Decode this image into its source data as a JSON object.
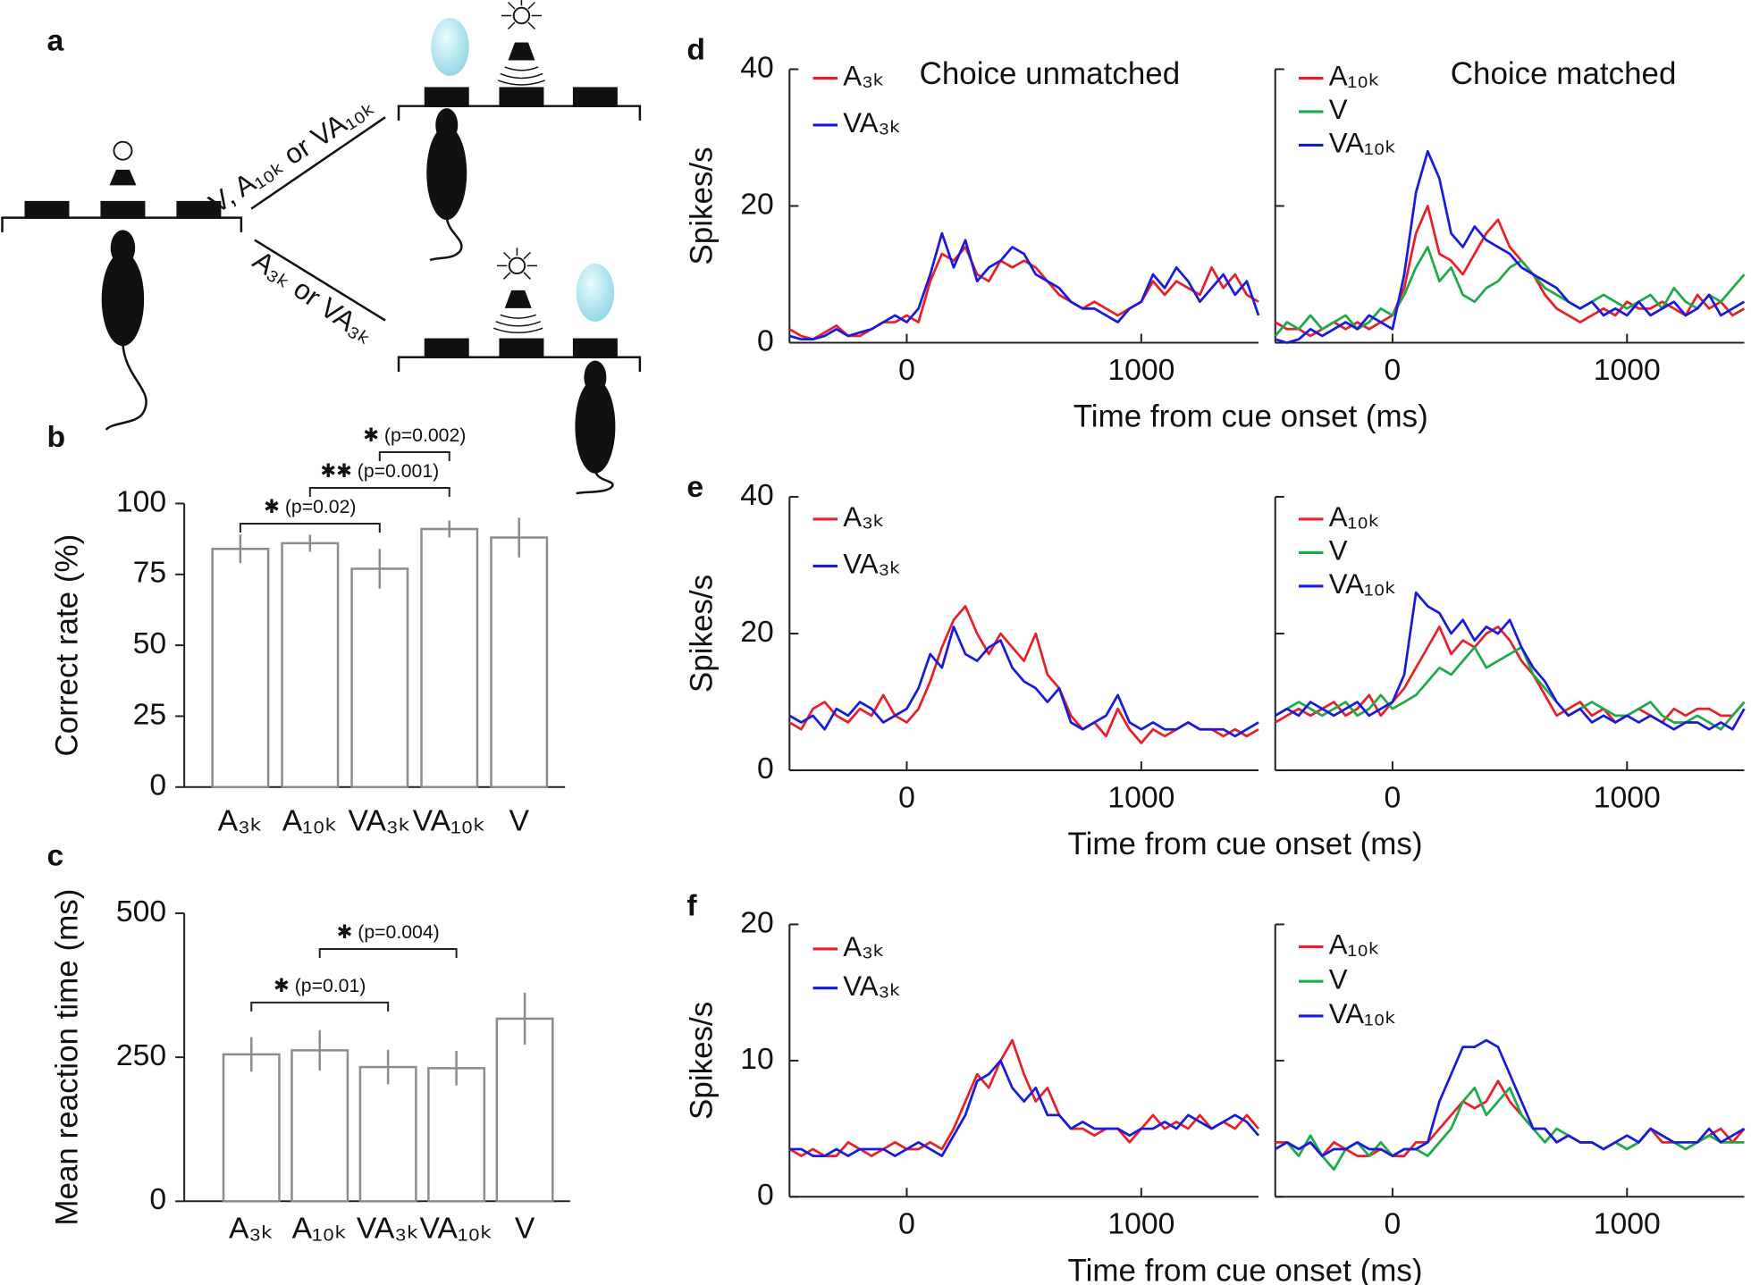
{
  "panel_labels": [
    "a",
    "b",
    "c",
    "d",
    "e",
    "f"
  ],
  "diagram": {
    "texts": [
      "V, A₁₀ₖ or VA₁₀ₖ",
      "A₃ₖ or VA₃ₖ"
    ]
  },
  "chart_data": [
    {
      "type": "bar",
      "ylabel": "Correct rate (%)",
      "categories": [
        "A₃ₖ",
        "A₁₀ₖ",
        "VA₃ₖ",
        "VA₁₀ₖ",
        "V"
      ],
      "values": [
        84,
        86,
        77,
        91,
        88
      ],
      "errors": [
        5,
        3,
        7,
        3,
        7
      ],
      "color": "#8c8c8c",
      "ylim": [
        0,
        100
      ],
      "yticks": [
        0,
        25,
        50,
        75,
        100
      ],
      "annotations": [
        {
          "text": "✱ (p=0.02)",
          "from": 0,
          "to": 2
        },
        {
          "text": "✱✱ (p=0.001)",
          "from": 1,
          "to": 3
        },
        {
          "text": "✱ (p=0.002)",
          "from": 2,
          "to": 3
        }
      ]
    },
    {
      "type": "bar",
      "ylabel": "Mean reaction time (ms)",
      "categories": [
        "A₃ₖ",
        "A₁₀ₖ",
        "VA₃ₖ",
        "VA₁₀ₖ",
        "V"
      ],
      "values": [
        255,
        262,
        233,
        231,
        317
      ],
      "errors": [
        30,
        35,
        30,
        30,
        45
      ],
      "color": "#8c8c8c",
      "ylim": [
        0,
        500
      ],
      "yticks": [
        0,
        250,
        500
      ],
      "annotations": [
        {
          "text": "✱ (p=0.01)",
          "from": 0,
          "to": 2
        },
        {
          "text": "✱ (p=0.004)",
          "from": 1,
          "to": 3
        }
      ]
    },
    {
      "type": "line",
      "title": "Choice unmatched",
      "ylabel": "Spikes/s",
      "xlabel": "Time from cue onset (ms)",
      "xlim": [
        -500,
        1500
      ],
      "xticks": [
        0,
        1000
      ],
      "ylim": [
        0,
        40
      ],
      "yticks": [
        0,
        20,
        40
      ],
      "x": [
        -500,
        -450,
        -400,
        -350,
        -300,
        -250,
        -200,
        -150,
        -100,
        -50,
        0,
        50,
        100,
        150,
        200,
        250,
        300,
        350,
        400,
        450,
        500,
        550,
        600,
        650,
        700,
        750,
        800,
        850,
        900,
        950,
        1000,
        1050,
        1100,
        1150,
        1200,
        1250,
        1300,
        1350,
        1400,
        1450,
        1500
      ],
      "series": [
        {
          "name": "A₃ₖ",
          "color": "#e8202a",
          "values": [
            2,
            1,
            0.5,
            1.5,
            2.5,
            1,
            1,
            2,
            3,
            3,
            4,
            3,
            9,
            13,
            12,
            14,
            10,
            9,
            12,
            11,
            12,
            11,
            9,
            7,
            6,
            5,
            6,
            5,
            4,
            5,
            6,
            9,
            7,
            9,
            8,
            7,
            11,
            8,
            10,
            7,
            6
          ]
        },
        {
          "name": "VA₃ₖ",
          "color": "#1a1adb",
          "values": [
            1,
            0.5,
            0.5,
            1,
            2,
            1,
            1.5,
            2,
            3,
            4,
            3,
            5,
            10,
            16,
            11,
            15,
            9,
            11,
            12,
            14,
            13,
            10,
            9,
            8,
            6,
            5,
            5,
            4,
            3,
            5,
            6,
            10,
            8,
            11,
            9,
            6,
            8,
            10,
            7,
            9,
            4
          ]
        }
      ]
    },
    {
      "type": "line",
      "title": "Choice matched",
      "xlim": [
        -500,
        1500
      ],
      "xticks": [
        0,
        1000
      ],
      "ylim": [
        0,
        40
      ],
      "yticks": [
        0,
        20,
        40
      ],
      "x": [
        -500,
        -450,
        -400,
        -350,
        -300,
        -250,
        -200,
        -150,
        -100,
        -50,
        0,
        50,
        100,
        150,
        200,
        250,
        300,
        350,
        400,
        450,
        500,
        550,
        600,
        650,
        700,
        750,
        800,
        850,
        900,
        950,
        1000,
        1050,
        1100,
        1150,
        1200,
        1250,
        1300,
        1350,
        1400,
        1450,
        1500
      ],
      "series": [
        {
          "name": "A₁₀ₖ",
          "color": "#e8202a",
          "values": [
            3,
            2,
            2,
            1,
            2,
            3,
            2,
            3,
            2,
            3,
            4,
            8,
            16,
            20,
            13,
            12,
            10,
            13,
            16,
            18,
            14,
            12,
            10,
            7,
            5,
            4,
            3,
            4,
            5,
            4,
            6,
            5,
            5,
            6,
            5,
            4,
            7,
            5,
            6,
            4,
            5
          ]
        },
        {
          "name": "V",
          "color": "#1faa4b",
          "values": [
            1,
            3,
            2,
            4,
            2,
            3,
            4,
            2,
            3,
            5,
            4,
            7,
            11,
            14,
            9,
            11,
            7,
            6,
            8,
            9,
            11,
            12,
            10,
            8,
            7,
            6,
            5,
            6,
            7,
            6,
            5,
            6,
            7,
            5,
            8,
            6,
            5,
            7,
            6,
            8,
            10
          ]
        },
        {
          "name": "VA₁₀ₖ",
          "color": "#1a1adb",
          "values": [
            0.5,
            0,
            0.5,
            2,
            1,
            2,
            3,
            2,
            4,
            3,
            2,
            10,
            22,
            28,
            24,
            16,
            14,
            17,
            15,
            14,
            13,
            11,
            10,
            9,
            8,
            6,
            5,
            6,
            4,
            5,
            4,
            6,
            4,
            5,
            6,
            4,
            5,
            7,
            4,
            5,
            6
          ]
        }
      ]
    },
    {
      "type": "line",
      "ylabel": "Spikes/s",
      "xlabel": "Time from cue onset (ms)",
      "xlim": [
        -500,
        1500
      ],
      "xticks": [
        0,
        1000
      ],
      "ylim": [
        0,
        40
      ],
      "yticks": [
        0,
        20,
        40
      ],
      "x": [
        -500,
        -450,
        -400,
        -350,
        -300,
        -250,
        -200,
        -150,
        -100,
        -50,
        0,
        50,
        100,
        150,
        200,
        250,
        300,
        350,
        400,
        450,
        500,
        550,
        600,
        650,
        700,
        750,
        800,
        850,
        900,
        950,
        1000,
        1050,
        1100,
        1150,
        1200,
        1250,
        1300,
        1350,
        1400,
        1450,
        1500
      ],
      "series": [
        {
          "name": "A₃ₖ",
          "color": "#e8202a",
          "values": [
            7,
            6,
            9,
            10,
            8,
            7,
            9,
            8,
            11,
            8,
            7,
            9,
            13,
            18,
            22,
            24,
            20,
            17,
            20,
            18,
            16,
            20,
            14,
            12,
            8,
            6,
            7,
            5,
            9,
            6,
            4,
            6,
            5,
            6,
            7,
            6,
            6,
            5,
            6,
            5,
            6
          ]
        },
        {
          "name": "VA₃ₖ",
          "color": "#1a1adb",
          "values": [
            8,
            7,
            8,
            6,
            9,
            8,
            10,
            9,
            7,
            8,
            9,
            12,
            17,
            15,
            21,
            17,
            16,
            18,
            19,
            15,
            13,
            12,
            10,
            12,
            7,
            6,
            7,
            8,
            11,
            7,
            6,
            7,
            6,
            6,
            7,
            6,
            6,
            6,
            5,
            6,
            7
          ]
        }
      ]
    },
    {
      "type": "line",
      "xlim": [
        -500,
        1500
      ],
      "xticks": [
        0,
        1000
      ],
      "ylim": [
        0,
        40
      ],
      "yticks": [
        0,
        20,
        40
      ],
      "x": [
        -500,
        -450,
        -400,
        -350,
        -300,
        -250,
        -200,
        -150,
        -100,
        -50,
        0,
        50,
        100,
        150,
        200,
        250,
        300,
        350,
        400,
        450,
        500,
        550,
        600,
        650,
        700,
        750,
        800,
        850,
        900,
        950,
        1000,
        1050,
        1100,
        1150,
        1200,
        1250,
        1300,
        1350,
        1400,
        1450,
        1500
      ],
      "series": [
        {
          "name": "A₁₀ₖ",
          "color": "#e8202a",
          "values": [
            7,
            8,
            9,
            8,
            9,
            10,
            8,
            9,
            11,
            8,
            10,
            12,
            15,
            18,
            21,
            17,
            19,
            18,
            20,
            21,
            19,
            16,
            14,
            11,
            8,
            9,
            10,
            8,
            9,
            7,
            8,
            9,
            8,
            7,
            9,
            8,
            9,
            9,
            8,
            8,
            10
          ]
        },
        {
          "name": "V",
          "color": "#1faa4b",
          "values": [
            8,
            9,
            10,
            9,
            8,
            9,
            10,
            8,
            9,
            11,
            9,
            10,
            11,
            13,
            15,
            14,
            16,
            18,
            15,
            16,
            17,
            18,
            14,
            12,
            10,
            8,
            9,
            10,
            9,
            8,
            8,
            9,
            10,
            8,
            7,
            7,
            8,
            7,
            6,
            8,
            10
          ]
        },
        {
          "name": "VA₁₀ₖ",
          "color": "#1a1adb",
          "values": [
            8,
            9,
            8,
            10,
            9,
            8,
            9,
            10,
            8,
            9,
            10,
            14,
            26,
            24,
            23,
            20,
            22,
            19,
            21,
            20,
            22,
            18,
            15,
            13,
            10,
            8,
            9,
            7,
            8,
            7,
            8,
            7,
            8,
            7,
            6,
            7,
            7,
            6,
            7,
            6,
            9
          ]
        }
      ]
    },
    {
      "type": "line",
      "ylabel": "Spikes/s",
      "xlabel": "Time from cue onset (ms)",
      "xlim": [
        -500,
        1500
      ],
      "xticks": [
        0,
        1000
      ],
      "ylim": [
        0,
        20
      ],
      "yticks": [
        0,
        10,
        20
      ],
      "x": [
        -500,
        -450,
        -400,
        -350,
        -300,
        -250,
        -200,
        -150,
        -100,
        -50,
        0,
        50,
        100,
        150,
        200,
        250,
        300,
        350,
        400,
        450,
        500,
        550,
        600,
        650,
        700,
        750,
        800,
        850,
        900,
        950,
        1000,
        1050,
        1100,
        1150,
        1200,
        1250,
        1300,
        1350,
        1400,
        1450,
        1500
      ],
      "series": [
        {
          "name": "A₃ₖ",
          "color": "#e8202a",
          "values": [
            3.5,
            3,
            3.5,
            3,
            3,
            4,
            3.5,
            3,
            3.5,
            4,
            3.5,
            3.5,
            4,
            3.5,
            5,
            7,
            9,
            8,
            10,
            11.5,
            9,
            7,
            8,
            6,
            5,
            5,
            4.5,
            5,
            5,
            4,
            5,
            6,
            5,
            5.5,
            5,
            6,
            5,
            5.5,
            5,
            6,
            5
          ]
        },
        {
          "name": "VA₃ₖ",
          "color": "#1a1adb",
          "values": [
            3.5,
            3.5,
            3,
            3,
            3.5,
            3,
            3.5,
            3.5,
            3.5,
            3,
            3.5,
            4,
            3.5,
            3,
            4.5,
            6,
            8.5,
            9,
            10,
            8,
            7,
            8,
            6,
            6,
            5,
            5.5,
            5,
            5,
            5,
            4.5,
            5,
            5,
            5.5,
            5,
            6,
            5.5,
            5,
            5.5,
            6,
            5.5,
            4.5
          ]
        }
      ]
    },
    {
      "type": "line",
      "xlim": [
        -500,
        1500
      ],
      "xticks": [
        0,
        1000
      ],
      "ylim": [
        0,
        20
      ],
      "yticks": [
        0,
        10,
        20
      ],
      "x": [
        -500,
        -450,
        -400,
        -350,
        -300,
        -250,
        -200,
        -150,
        -100,
        -50,
        0,
        50,
        100,
        150,
        200,
        250,
        300,
        350,
        400,
        450,
        500,
        550,
        600,
        650,
        700,
        750,
        800,
        850,
        900,
        950,
        1000,
        1050,
        1100,
        1150,
        1200,
        1250,
        1300,
        1350,
        1400,
        1450,
        1500
      ],
      "series": [
        {
          "name": "A₁₀ₖ",
          "color": "#e8202a",
          "values": [
            4,
            4,
            3.5,
            4,
            3,
            4,
            3.5,
            3,
            3,
            3.5,
            3,
            3,
            4,
            4,
            5,
            6,
            7,
            6.5,
            7,
            8.5,
            7,
            6,
            5,
            5,
            4,
            4.5,
            4,
            4,
            3.5,
            4,
            3.5,
            4,
            5,
            4,
            4,
            3.5,
            4,
            4.5,
            5,
            4,
            5
          ]
        },
        {
          "name": "V",
          "color": "#1faa4b",
          "values": [
            3.5,
            4,
            3,
            4.5,
            3,
            2,
            3.5,
            4,
            3,
            4,
            3,
            3.5,
            3.5,
            3,
            4,
            5,
            7,
            8,
            6,
            7,
            8,
            6,
            5,
            4,
            5,
            4.5,
            4,
            4,
            3.5,
            4,
            3.5,
            4,
            5,
            4.5,
            4,
            3.5,
            4,
            4.5,
            4,
            4,
            4
          ]
        },
        {
          "name": "VA₁₀ₖ",
          "color": "#1a1adb",
          "values": [
            3.5,
            4,
            3.5,
            4,
            3,
            3.5,
            3.5,
            4,
            3.5,
            3.5,
            3,
            3.5,
            3.5,
            4,
            7,
            9,
            11,
            11,
            11.5,
            11,
            9,
            7,
            5,
            5,
            4,
            4.5,
            4,
            4,
            3.5,
            4,
            4.5,
            4,
            5,
            4.5,
            4,
            4,
            4,
            5,
            4,
            4.5,
            5
          ]
        }
      ]
    }
  ]
}
